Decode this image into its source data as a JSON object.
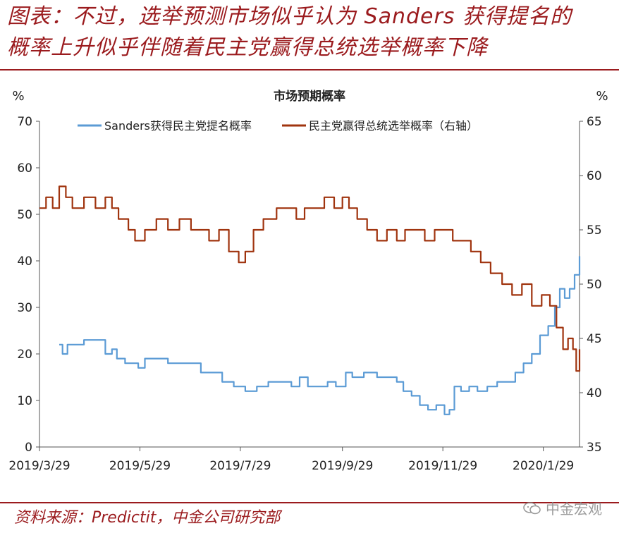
{
  "header": {
    "line1": "图表：不过，选举预测市场似乎认为 Sanders 获得提名的",
    "line2": "概率上升似乎伴随着民主党赢得总统选举概率下降"
  },
  "footer": {
    "source": "资料来源：Predictit，中金公司研究部"
  },
  "watermark": {
    "text": "中金宏观",
    "icon": "wechat-icon"
  },
  "colors": {
    "accent": "#9b1b1e",
    "sanders": "#5b9bd5",
    "dem": "#a0340f"
  },
  "chart_data": {
    "type": "line",
    "title": "市场预期概率",
    "ylabel_left": "%",
    "ylabel_right": "%",
    "x_ticks": [
      "2019/3/29",
      "2019/5/29",
      "2019/7/29",
      "2019/9/29",
      "2019/11/29",
      "2020/1/29"
    ],
    "x_range": [
      "2019/3/29",
      "2020/2/20"
    ],
    "ylim_left": [
      0,
      70
    ],
    "yticks_left": [
      0,
      10,
      20,
      30,
      40,
      50,
      60,
      70
    ],
    "ylim_right": [
      35,
      65
    ],
    "yticks_right": [
      35,
      40,
      45,
      50,
      55,
      60,
      65
    ],
    "grid": false,
    "legend_position": "top",
    "series": [
      {
        "name": "Sanders获得民主党提名概率",
        "axis": "left",
        "color": "#5b9bd5",
        "points": [
          [
            "2019/4/10",
            22
          ],
          [
            "2019/4/12",
            20
          ],
          [
            "2019/4/15",
            22
          ],
          [
            "2019/4/20",
            22
          ],
          [
            "2019/4/25",
            23
          ],
          [
            "2019/5/1",
            23
          ],
          [
            "2019/5/5",
            23
          ],
          [
            "2019/5/8",
            20
          ],
          [
            "2019/5/12",
            21
          ],
          [
            "2019/5/15",
            19
          ],
          [
            "2019/5/20",
            18
          ],
          [
            "2019/5/25",
            18
          ],
          [
            "2019/5/28",
            17
          ],
          [
            "2019/6/1",
            19
          ],
          [
            "2019/6/8",
            19
          ],
          [
            "2019/6/15",
            18
          ],
          [
            "2019/6/25",
            18
          ],
          [
            "2019/7/1",
            18
          ],
          [
            "2019/7/5",
            16
          ],
          [
            "2019/7/12",
            16
          ],
          [
            "2019/7/18",
            14
          ],
          [
            "2019/7/25",
            13
          ],
          [
            "2019/8/1",
            12
          ],
          [
            "2019/8/8",
            13
          ],
          [
            "2019/8/15",
            14
          ],
          [
            "2019/8/22",
            14
          ],
          [
            "2019/8/29",
            13
          ],
          [
            "2019/9/3",
            15
          ],
          [
            "2019/9/8",
            13
          ],
          [
            "2019/9/15",
            13
          ],
          [
            "2019/9/20",
            14
          ],
          [
            "2019/9/25",
            13
          ],
          [
            "2019/10/1",
            16
          ],
          [
            "2019/10/5",
            15
          ],
          [
            "2019/10/12",
            16
          ],
          [
            "2019/10/20",
            15
          ],
          [
            "2019/10/26",
            15
          ],
          [
            "2019/11/1",
            14
          ],
          [
            "2019/11/5",
            12
          ],
          [
            "2019/11/10",
            11
          ],
          [
            "2019/11/15",
            9
          ],
          [
            "2019/11/20",
            8
          ],
          [
            "2019/11/25",
            9
          ],
          [
            "2019/11/30",
            7
          ],
          [
            "2019/12/3",
            8
          ],
          [
            "2019/12/6",
            13
          ],
          [
            "2019/12/10",
            12
          ],
          [
            "2019/12/15",
            13
          ],
          [
            "2019/12/20",
            12
          ],
          [
            "2019/12/26",
            13
          ],
          [
            "2020/1/1",
            14
          ],
          [
            "2020/1/6",
            14
          ],
          [
            "2020/1/12",
            16
          ],
          [
            "2020/1/17",
            18
          ],
          [
            "2020/1/22",
            20
          ],
          [
            "2020/1/27",
            24
          ],
          [
            "2020/2/1",
            26
          ],
          [
            "2020/2/5",
            30
          ],
          [
            "2020/2/8",
            34
          ],
          [
            "2020/2/11",
            32
          ],
          [
            "2020/2/14",
            34
          ],
          [
            "2020/2/17",
            37
          ],
          [
            "2020/2/20",
            41
          ]
        ]
      },
      {
        "name": "民主党赢得总统选举概率（右轴）",
        "axis": "right",
        "color": "#a0340f",
        "points": [
          [
            "2019/3/29",
            57
          ],
          [
            "2019/4/2",
            58
          ],
          [
            "2019/4/6",
            57
          ],
          [
            "2019/4/10",
            59
          ],
          [
            "2019/4/14",
            58
          ],
          [
            "2019/4/18",
            57
          ],
          [
            "2019/4/25",
            58
          ],
          [
            "2019/5/2",
            57
          ],
          [
            "2019/5/8",
            58
          ],
          [
            "2019/5/12",
            57
          ],
          [
            "2019/5/16",
            56
          ],
          [
            "2019/5/22",
            55
          ],
          [
            "2019/5/26",
            54
          ],
          [
            "2019/6/1",
            55
          ],
          [
            "2019/6/8",
            56
          ],
          [
            "2019/6/15",
            55
          ],
          [
            "2019/6/22",
            56
          ],
          [
            "2019/6/29",
            55
          ],
          [
            "2019/7/5",
            55
          ],
          [
            "2019/7/10",
            54
          ],
          [
            "2019/7/16",
            55
          ],
          [
            "2019/7/22",
            53
          ],
          [
            "2019/7/28",
            52
          ],
          [
            "2019/8/1",
            53
          ],
          [
            "2019/8/6",
            55
          ],
          [
            "2019/8/12",
            56
          ],
          [
            "2019/8/20",
            57
          ],
          [
            "2019/8/26",
            57
          ],
          [
            "2019/9/1",
            56
          ],
          [
            "2019/9/6",
            57
          ],
          [
            "2019/9/12",
            57
          ],
          [
            "2019/9/18",
            58
          ],
          [
            "2019/9/24",
            57
          ],
          [
            "2019/9/29",
            58
          ],
          [
            "2019/10/3",
            57
          ],
          [
            "2019/10/8",
            56
          ],
          [
            "2019/10/14",
            55
          ],
          [
            "2019/10/20",
            54
          ],
          [
            "2019/10/26",
            55
          ],
          [
            "2019/11/1",
            54
          ],
          [
            "2019/11/6",
            55
          ],
          [
            "2019/11/12",
            55
          ],
          [
            "2019/11/18",
            54
          ],
          [
            "2019/11/24",
            55
          ],
          [
            "2019/11/30",
            55
          ],
          [
            "2019/12/5",
            54
          ],
          [
            "2019/12/10",
            54
          ],
          [
            "2019/12/16",
            53
          ],
          [
            "2019/12/22",
            52
          ],
          [
            "2019/12/28",
            51
          ],
          [
            "2020/1/4",
            50
          ],
          [
            "2020/1/10",
            49
          ],
          [
            "2020/1/16",
            50
          ],
          [
            "2020/1/22",
            48
          ],
          [
            "2020/1/28",
            49
          ],
          [
            "2020/2/2",
            48
          ],
          [
            "2020/2/6",
            46
          ],
          [
            "2020/2/10",
            44
          ],
          [
            "2020/2/13",
            45
          ],
          [
            "2020/2/16",
            44
          ],
          [
            "2020/2/18",
            42
          ],
          [
            "2020/2/20",
            44
          ]
        ]
      }
    ]
  }
}
